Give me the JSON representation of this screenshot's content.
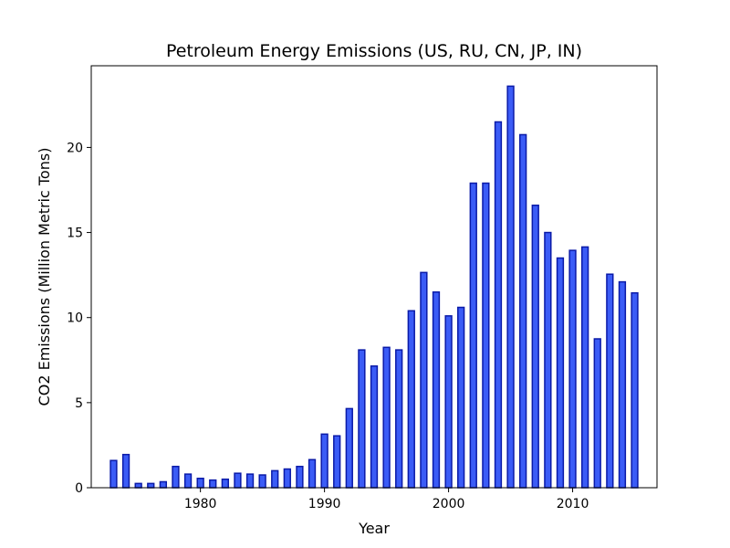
{
  "chart_data": {
    "type": "bar",
    "title": "Petroleum Energy Emissions (US, RU, CN, JP, IN)",
    "xlabel": "Year",
    "ylabel": "CO2 Emissions (Million Metric Tons)",
    "xlim": [
      1971.2,
      1976.8
    ],
    "ylim": [
      0,
      24.8
    ],
    "x": [
      1973,
      1974,
      1975,
      1976,
      1977,
      1978,
      1979,
      1980,
      1981,
      1982,
      1983,
      1984,
      1985,
      1986,
      1987,
      1988,
      1989,
      1990,
      1991,
      1992,
      1993,
      1994,
      1995,
      1996,
      1997,
      1998,
      1999,
      2000,
      2001,
      2002,
      2003,
      2004,
      2005,
      2006,
      2007,
      2008,
      2009,
      2010,
      2011,
      2012,
      2013,
      2014,
      2015
    ],
    "values": [
      1.6,
      1.95,
      0.25,
      0.25,
      0.35,
      1.25,
      0.8,
      0.55,
      0.45,
      0.5,
      0.85,
      0.8,
      0.75,
      1.0,
      1.1,
      1.25,
      1.65,
      3.15,
      3.05,
      4.65,
      8.1,
      7.15,
      8.25,
      8.1,
      10.4,
      12.65,
      11.5,
      10.1,
      10.6,
      17.9,
      17.9,
      21.5,
      23.6,
      20.75,
      16.6,
      15.0,
      13.5,
      13.95,
      14.15,
      8.75,
      12.55,
      12.1,
      11.45
    ],
    "xticks": [
      1980,
      1990,
      2000,
      2010
    ],
    "xtick_labels": [
      "1980",
      "1990",
      "2000",
      "2010"
    ],
    "yticks": [
      0,
      5,
      10,
      15,
      20
    ],
    "ytick_labels": [
      "0",
      "5",
      "10",
      "15",
      "20"
    ],
    "bar_color": "#3b5cf6",
    "edge_color": "#0a1aa8",
    "grid": false,
    "legend": "none"
  }
}
